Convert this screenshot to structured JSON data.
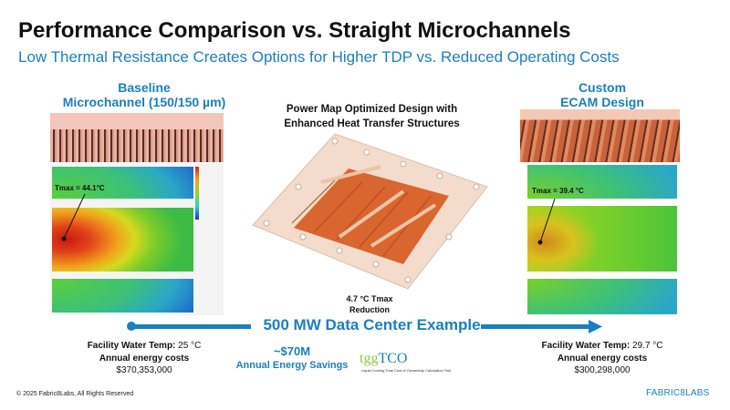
{
  "title": "Performance Comparison vs. Straight Microchannels",
  "subtitle": "Low Thermal Resistance Creates Options for Higher TDP vs. Reduced Operating Costs",
  "baseline": {
    "heading1": "Baseline",
    "heading2": "Microchannel (150/150 µm)",
    "tmax": "Tmax = 44.1°C",
    "facility_label": "Facility Water Temp:",
    "facility_value": "25 °C",
    "cost_label": "Annual energy costs",
    "cost_value": "$370,353,000"
  },
  "center": {
    "heading1": "Power Map Optimized Design with",
    "heading2": "Enhanced Heat Transfer Structures",
    "reduction1": "4.7 °C Tmax",
    "reduction2": "Reduction"
  },
  "custom": {
    "heading1": "Custom",
    "heading2": "ECAM Design",
    "tmax": "Tmax = 39.4 °C",
    "facility_label": "Facility Water Temp:",
    "facility_value": "29.7 °C",
    "cost_label": "Annual energy costs",
    "cost_value": "$300,298,000"
  },
  "example_label": "500 MW Data Center Example",
  "savings": {
    "amount": "~$70M",
    "label": "Annual Energy Savings"
  },
  "tgg": {
    "logo_a": "tgg",
    "logo_b": "TCO",
    "caption": "Liquid Cooling Total Cost of Ownership Calculation Tool"
  },
  "footer": {
    "copyright": "© 2025 Fabric8Labs, All Rights Reserved",
    "logo": "FABRIC8LABS"
  },
  "colors": {
    "blue": "#1a7fc1",
    "copper": "#d9652f",
    "tgg_green": "#8dc63f"
  }
}
